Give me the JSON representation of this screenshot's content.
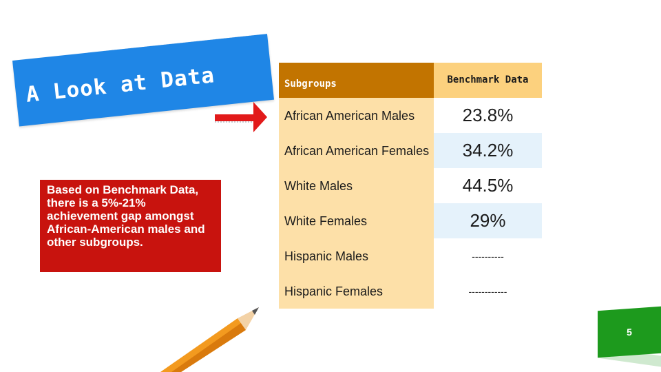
{
  "title": "A Look at Data",
  "note": "Based on Benchmark Data, there is a 5%-21% achievement gap amongst African-American males and other subgroups.",
  "table": {
    "headers": {
      "subgroups": "Subgroups",
      "benchmark": "Benchmark Data"
    },
    "rows": [
      {
        "group": "African American Males",
        "value": "23.8%"
      },
      {
        "group": "African American Females",
        "value": "34.2%"
      },
      {
        "group": "White Males",
        "value": "44.5%"
      },
      {
        "group": "White Females",
        "value": "29%"
      },
      {
        "group": "Hispanic Males",
        "value": "----------"
      },
      {
        "group": "Hispanic Females",
        "value": "------------"
      }
    ]
  },
  "page_number": "5",
  "colors": {
    "banner": "#1f86e6",
    "note": "#c8130e",
    "header": "#c27400",
    "arrow": "#e21a1a",
    "page_badge": "#1d9a1d"
  }
}
